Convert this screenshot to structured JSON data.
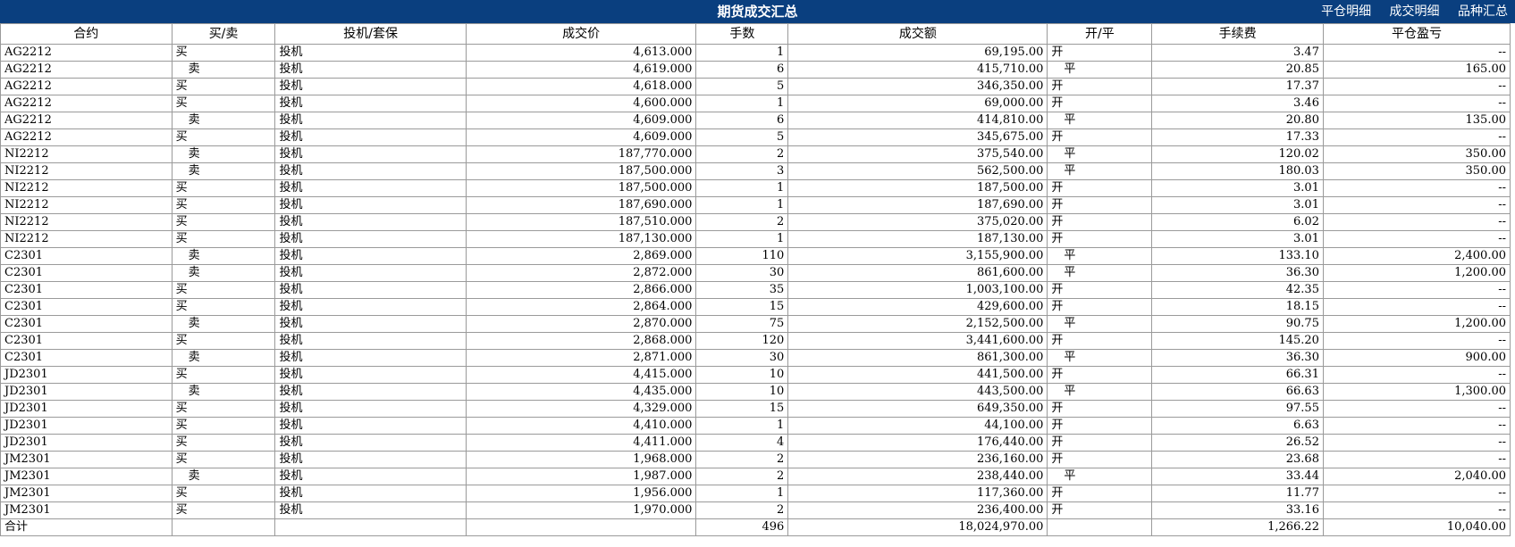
{
  "header": {
    "title": "期货成交汇总",
    "links": [
      "平仓明细",
      "成交明细",
      "品种汇总"
    ]
  },
  "columns": [
    "合约",
    "买/卖",
    "投机/套保",
    "成交价",
    "手数",
    "成交额",
    "开/平",
    "手续费",
    "平仓盈亏"
  ],
  "rows": [
    [
      "AG2212",
      "买",
      "投机",
      "4,613.000",
      "1",
      "69,195.00",
      "开",
      "3.47",
      "--"
    ],
    [
      "AG2212",
      "卖",
      "投机",
      "4,619.000",
      "6",
      "415,710.00",
      "平",
      "20.85",
      "165.00"
    ],
    [
      "AG2212",
      "买",
      "投机",
      "4,618.000",
      "5",
      "346,350.00",
      "开",
      "17.37",
      "--"
    ],
    [
      "AG2212",
      "买",
      "投机",
      "4,600.000",
      "1",
      "69,000.00",
      "开",
      "3.46",
      "--"
    ],
    [
      "AG2212",
      "卖",
      "投机",
      "4,609.000",
      "6",
      "414,810.00",
      "平",
      "20.80",
      "135.00"
    ],
    [
      "AG2212",
      "买",
      "投机",
      "4,609.000",
      "5",
      "345,675.00",
      "开",
      "17.33",
      "--"
    ],
    [
      "NI2212",
      "卖",
      "投机",
      "187,770.000",
      "2",
      "375,540.00",
      "平",
      "120.02",
      "350.00"
    ],
    [
      "NI2212",
      "卖",
      "投机",
      "187,500.000",
      "3",
      "562,500.00",
      "平",
      "180.03",
      "350.00"
    ],
    [
      "NI2212",
      "买",
      "投机",
      "187,500.000",
      "1",
      "187,500.00",
      "开",
      "3.01",
      "--"
    ],
    [
      "NI2212",
      "买",
      "投机",
      "187,690.000",
      "1",
      "187,690.00",
      "开",
      "3.01",
      "--"
    ],
    [
      "NI2212",
      "买",
      "投机",
      "187,510.000",
      "2",
      "375,020.00",
      "开",
      "6.02",
      "--"
    ],
    [
      "NI2212",
      "买",
      "投机",
      "187,130.000",
      "1",
      "187,130.00",
      "开",
      "3.01",
      "--"
    ],
    [
      "C2301",
      "卖",
      "投机",
      "2,869.000",
      "110",
      "3,155,900.00",
      "平",
      "133.10",
      "2,400.00"
    ],
    [
      "C2301",
      "卖",
      "投机",
      "2,872.000",
      "30",
      "861,600.00",
      "平",
      "36.30",
      "1,200.00"
    ],
    [
      "C2301",
      "买",
      "投机",
      "2,866.000",
      "35",
      "1,003,100.00",
      "开",
      "42.35",
      "--"
    ],
    [
      "C2301",
      "买",
      "投机",
      "2,864.000",
      "15",
      "429,600.00",
      "开",
      "18.15",
      "--"
    ],
    [
      "C2301",
      "卖",
      "投机",
      "2,870.000",
      "75",
      "2,152,500.00",
      "平",
      "90.75",
      "1,200.00"
    ],
    [
      "C2301",
      "买",
      "投机",
      "2,868.000",
      "120",
      "3,441,600.00",
      "开",
      "145.20",
      "--"
    ],
    [
      "C2301",
      "卖",
      "投机",
      "2,871.000",
      "30",
      "861,300.00",
      "平",
      "36.30",
      "900.00"
    ],
    [
      "JD2301",
      "买",
      "投机",
      "4,415.000",
      "10",
      "441,500.00",
      "开",
      "66.31",
      "--"
    ],
    [
      "JD2301",
      "卖",
      "投机",
      "4,435.000",
      "10",
      "443,500.00",
      "平",
      "66.63",
      "1,300.00"
    ],
    [
      "JD2301",
      "买",
      "投机",
      "4,329.000",
      "15",
      "649,350.00",
      "开",
      "97.55",
      "--"
    ],
    [
      "JD2301",
      "买",
      "投机",
      "4,410.000",
      "1",
      "44,100.00",
      "开",
      "6.63",
      "--"
    ],
    [
      "JD2301",
      "买",
      "投机",
      "4,411.000",
      "4",
      "176,440.00",
      "开",
      "26.52",
      "--"
    ],
    [
      "JM2301",
      "买",
      "投机",
      "1,968.000",
      "2",
      "236,160.00",
      "开",
      "23.68",
      "--"
    ],
    [
      "JM2301",
      "卖",
      "投机",
      "1,987.000",
      "2",
      "238,440.00",
      "平",
      "33.44",
      "2,040.00"
    ],
    [
      "JM2301",
      "买",
      "投机",
      "1,956.000",
      "1",
      "117,360.00",
      "开",
      "11.77",
      "--"
    ],
    [
      "JM2301",
      "买",
      "投机",
      "1,970.000",
      "2",
      "236,400.00",
      "开",
      "33.16",
      "--"
    ]
  ],
  "totals": {
    "label": "合计",
    "lots": "496",
    "amount": "18,024,970.00",
    "fee": "1,266.22",
    "close_pnl": "10,040.00"
  },
  "colors": {
    "header_bg": "#0a3f7f",
    "header_text": "#ffffff",
    "grid_line": "#9a9a9a"
  }
}
